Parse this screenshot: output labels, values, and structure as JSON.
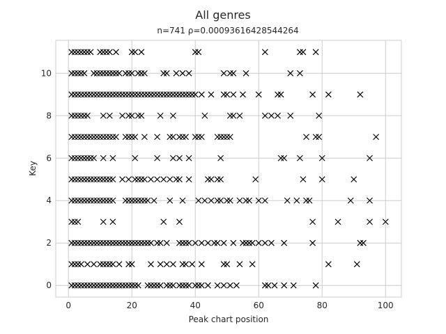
{
  "chart_data": {
    "type": "scatter",
    "title": "All genres",
    "subtitle": "n=741 ρ=0.00093616428544264",
    "xlabel": "Peak chart position",
    "ylabel": "Key",
    "xlim": [
      -4,
      105
    ],
    "ylim": [
      -0.55,
      11.55
    ],
    "xticks": [
      0,
      20,
      40,
      60,
      80,
      100
    ],
    "yticks": [
      0,
      2,
      4,
      6,
      8,
      10
    ],
    "grid": true,
    "marker": "x",
    "marker_color": "#000000",
    "grid_color": "#cccccc",
    "series": [
      {
        "points_by_key": [
          {
            "key": 0,
            "x": [
              1,
              2,
              3,
              4,
              5,
              6,
              7,
              8,
              9,
              10,
              11,
              12,
              13,
              14,
              15,
              16,
              17,
              18,
              19,
              20,
              21,
              22,
              25,
              26,
              27,
              28,
              29,
              31,
              32,
              33,
              35,
              36,
              37,
              38,
              40,
              41,
              42,
              44,
              47,
              49,
              51,
              53,
              62,
              63,
              65,
              68,
              71,
              78
            ]
          },
          {
            "key": 1,
            "x": [
              1,
              2,
              3,
              4,
              6,
              8,
              10,
              11,
              12,
              13,
              14,
              16,
              19,
              20,
              26,
              29,
              31,
              33,
              36,
              37,
              39,
              42,
              49,
              50,
              54,
              58,
              82,
              91
            ]
          },
          {
            "key": 2,
            "x": [
              1,
              2,
              3,
              4,
              5,
              6,
              7,
              8,
              9,
              10,
              11,
              12,
              13,
              14,
              15,
              16,
              17,
              18,
              19,
              20,
              21,
              22,
              23,
              24,
              25,
              26,
              28,
              29,
              31,
              35,
              36,
              37,
              38,
              40,
              42,
              44,
              46,
              47,
              49,
              52,
              55,
              56,
              57,
              58,
              60,
              62,
              64,
              68,
              77,
              92,
              93
            ]
          },
          {
            "key": 3,
            "x": [
              1,
              2,
              3,
              11,
              14,
              30,
              35,
              77,
              85,
              95,
              100
            ]
          },
          {
            "key": 4,
            "x": [
              1,
              2,
              3,
              4,
              5,
              6,
              7,
              8,
              9,
              10,
              11,
              12,
              13,
              14,
              18,
              19,
              20,
              21,
              22,
              23,
              24,
              25,
              27,
              32,
              36,
              41,
              43,
              45,
              47,
              48,
              50,
              51,
              54,
              56,
              57,
              60,
              62,
              69,
              72,
              75,
              76,
              89,
              95
            ]
          },
          {
            "key": 5,
            "x": [
              1,
              2,
              3,
              4,
              5,
              6,
              7,
              8,
              9,
              10,
              11,
              12,
              13,
              14,
              17,
              19,
              21,
              22,
              23,
              24,
              26,
              28,
              30,
              32,
              34,
              35,
              38,
              44,
              45,
              47,
              48,
              59,
              74,
              80,
              90
            ]
          },
          {
            "key": 6,
            "x": [
              1,
              2,
              3,
              4,
              5,
              6,
              7,
              8,
              11,
              14,
              21,
              28,
              33,
              35,
              38,
              48,
              67,
              68,
              73,
              80,
              95
            ]
          },
          {
            "key": 7,
            "x": [
              1,
              2,
              3,
              4,
              5,
              6,
              7,
              8,
              9,
              10,
              11,
              12,
              13,
              14,
              15,
              18,
              19,
              20,
              21,
              24,
              28,
              32,
              33,
              35,
              36,
              37,
              40,
              41,
              42,
              47,
              48,
              49,
              50,
              51,
              75,
              78,
              79,
              97
            ]
          },
          {
            "key": 8,
            "x": [
              1,
              2,
              3,
              4,
              5,
              6,
              11,
              13,
              17,
              19,
              20,
              22,
              23,
              29,
              33,
              43,
              51,
              52,
              54,
              62,
              64,
              66,
              70,
              79
            ]
          },
          {
            "key": 9,
            "x": [
              1,
              2,
              3,
              4,
              5,
              6,
              7,
              8,
              9,
              10,
              11,
              12,
              13,
              14,
              15,
              16,
              17,
              18,
              19,
              20,
              21,
              22,
              23,
              24,
              25,
              26,
              27,
              28,
              29,
              30,
              31,
              32,
              33,
              34,
              35,
              36,
              37,
              38,
              39,
              40,
              42,
              45,
              49,
              50,
              52,
              55,
              60,
              66,
              67,
              77,
              82,
              92
            ]
          },
          {
            "key": 10,
            "x": [
              1,
              2,
              3,
              4,
              5,
              8,
              9,
              10,
              11,
              12,
              13,
              14,
              15,
              16,
              18,
              19,
              20,
              22,
              23,
              24,
              30,
              31,
              34,
              36,
              38,
              49,
              51,
              52,
              56,
              70,
              73
            ]
          },
          {
            "key": 11,
            "x": [
              1,
              2,
              3,
              4,
              5,
              6,
              7,
              10,
              11,
              12,
              13,
              15,
              20,
              21,
              23,
              40,
              41,
              62,
              73,
              74,
              78
            ]
          }
        ]
      }
    ]
  }
}
